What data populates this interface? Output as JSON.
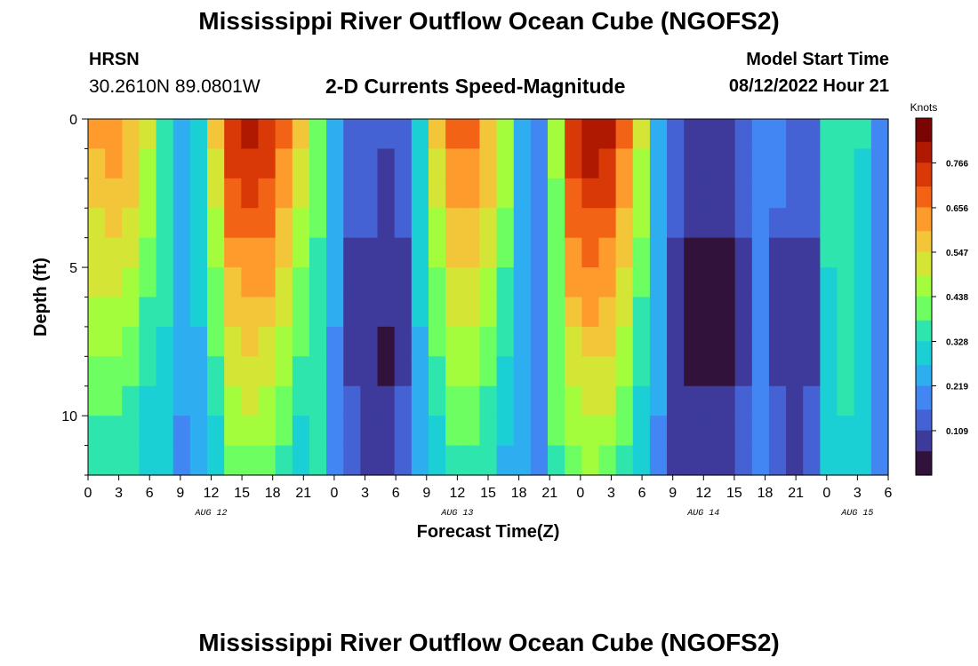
{
  "header": {
    "title": "Mississippi River Outflow Ocean Cube (NGOFS2)",
    "station_name": "HRSN",
    "station_coords": "30.2610N  89.0801W",
    "subtitle": "2-D Currents Speed-Magnitude",
    "model_start_label": "Model Start Time",
    "model_start_value": "08/12/2022 Hour 21"
  },
  "footer": {
    "title": "Mississippi River Outflow Ocean Cube (NGOFS2)"
  },
  "chart_data": {
    "type": "heatmap",
    "title": "2-D Currents Speed-Magnitude",
    "xlabel": "Forecast Time(Z)",
    "ylabel": "Depth (ft)",
    "x_tick_labels": [
      "0",
      "3",
      "6",
      "9",
      "12",
      "15",
      "18",
      "21",
      "0",
      "3",
      "6",
      "9",
      "12",
      "15",
      "18",
      "21",
      "0",
      "3",
      "6",
      "9",
      "12",
      "15",
      "18",
      "21",
      "0",
      "3",
      "6"
    ],
    "x_tick_hours": [
      0,
      3,
      6,
      9,
      12,
      15,
      18,
      21,
      24,
      27,
      30,
      33,
      36,
      39,
      42,
      45,
      48,
      51,
      54,
      57,
      60,
      63,
      66,
      69,
      72,
      75,
      78
    ],
    "x_range_hours": [
      0,
      78
    ],
    "date_labels": [
      {
        "label": "AUG 12",
        "hour": 12
      },
      {
        "label": "AUG 13",
        "hour": 36
      },
      {
        "label": "AUG 14",
        "hour": 60
      },
      {
        "label": "AUG 15",
        "hour": 75
      }
    ],
    "y_tick_labels": [
      "0",
      "5",
      "10"
    ],
    "y_tick_values": [
      0,
      5,
      10
    ],
    "y_range_ft": [
      0,
      12
    ],
    "colorbar": {
      "unit": "Knots",
      "tick_labels": [
        "0.766",
        "0.656",
        "0.547",
        "0.438",
        "0.328",
        "0.219",
        "0.109"
      ],
      "tick_values": [
        0.766,
        0.656,
        0.547,
        0.438,
        0.328,
        0.219,
        0.109
      ],
      "range": [
        0.0,
        0.876
      ]
    },
    "depth_bins": 12,
    "surface_speed_knots": [
      0.62,
      0.64,
      0.6,
      0.5,
      0.36,
      0.25,
      0.3,
      0.55,
      0.75,
      0.78,
      0.76,
      0.68,
      0.55,
      0.4,
      0.24,
      0.16,
      0.12,
      0.11,
      0.14,
      0.3,
      0.55,
      0.66,
      0.66,
      0.6,
      0.48,
      0.26,
      0.2,
      0.45,
      0.76,
      0.8,
      0.78,
      0.68,
      0.5,
      0.25,
      0.12,
      0.09,
      0.08,
      0.1,
      0.16,
      0.2,
      0.17,
      0.12,
      0.16,
      0.35,
      0.38,
      0.33,
      0.2
    ],
    "colors": {
      "map": [
        "#30123b",
        "#3d3a9b",
        "#4562d4",
        "#4286f4",
        "#2eaef0",
        "#1bd0d5",
        "#2ee5ae",
        "#6dfe62",
        "#a3fd3d",
        "#d5e535",
        "#f3c63a",
        "#fe9b2d",
        "#f36315",
        "#d93807",
        "#b01901",
        "#7a0403"
      ]
    }
  }
}
